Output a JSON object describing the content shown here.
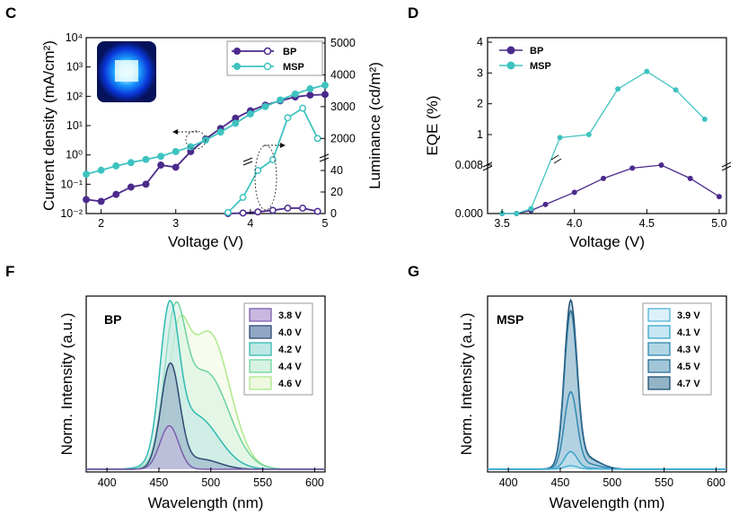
{
  "colors": {
    "bp": "#4b2a8c",
    "msp": "#3ec3c0"
  },
  "panels": {
    "C": {
      "letter": "C"
    },
    "D": {
      "letter": "D"
    },
    "F": {
      "letter": "F"
    },
    "G": {
      "letter": "G"
    }
  },
  "chart_data": [
    {
      "id": "C",
      "type": "line",
      "xlabel": "Voltage (V)",
      "ylabel_left": "Current density (mA/cm²)",
      "ylabel_right": "Luminance (cd/m²)",
      "xlim": [
        1.8,
        5.0
      ],
      "xticks": [
        "2",
        "3",
        "4",
        "5"
      ],
      "ylim_left_log": [
        0.01,
        10000
      ],
      "yticks_left": [
        "10⁻²",
        "10⁻¹",
        "10⁰",
        "10¹",
        "10²",
        "10³",
        "10⁴"
      ],
      "yticks_right_upper": [
        "2000",
        "3000",
        "4000",
        "5000"
      ],
      "yticks_right_lower": [
        "0",
        "20",
        "40"
      ],
      "legend": [
        "BP",
        "MSP"
      ],
      "legend_position": "top-right",
      "series": [
        {
          "name": "BP",
          "kind": "current-density",
          "filled": true,
          "x": [
            1.8,
            2.0,
            2.2,
            2.4,
            2.6,
            2.8,
            3.0,
            3.2,
            3.4,
            3.6,
            3.8,
            4.0,
            4.2,
            4.4,
            4.6,
            4.8,
            5.0
          ],
          "y": [
            0.03,
            0.026,
            0.045,
            0.08,
            0.1,
            0.45,
            0.38,
            1.3,
            3.5,
            8,
            18,
            32,
            50,
            70,
            95,
            110,
            115
          ]
        },
        {
          "name": "MSP",
          "kind": "current-density",
          "filled": true,
          "x": [
            1.8,
            2.0,
            2.2,
            2.4,
            2.6,
            2.8,
            3.0,
            3.2,
            3.4,
            3.6,
            3.8,
            4.0,
            4.2,
            4.4,
            4.6,
            4.8,
            5.0
          ],
          "y": [
            0.22,
            0.3,
            0.42,
            0.55,
            0.7,
            0.9,
            1.3,
            1.9,
            3.2,
            6,
            12,
            25,
            45,
            75,
            120,
            180,
            240
          ]
        },
        {
          "name": "BP",
          "kind": "luminance",
          "filled": false,
          "x": [
            3.7,
            3.9,
            4.1,
            4.3,
            4.5,
            4.7,
            4.9
          ],
          "y": [
            0,
            0.5,
            1.5,
            3,
            5,
            5,
            2
          ]
        },
        {
          "name": "MSP",
          "kind": "luminance",
          "filled": false,
          "x": [
            3.7,
            3.9,
            4.1,
            4.3,
            4.5,
            4.7,
            4.9
          ],
          "y": [
            1,
            15,
            40,
            50,
            2650,
            2950,
            2000
          ]
        }
      ]
    },
    {
      "id": "D",
      "type": "line",
      "xlabel": "Voltage (V)",
      "ylabel": "EQE (%)",
      "xlim": [
        3.4,
        5.05
      ],
      "xticks": [
        "3.5",
        "4.0",
        "4.5",
        "5.0"
      ],
      "yticks_upper": [
        "1",
        "2",
        "3",
        "4"
      ],
      "yticks_lower": [
        "0.000",
        "0.008"
      ],
      "legend": [
        "BP",
        "MSP"
      ],
      "legend_position": "top-left",
      "series": [
        {
          "name": "BP",
          "x": [
            3.5,
            3.6,
            3.7,
            3.8,
            4.0,
            4.2,
            4.4,
            4.6,
            4.8,
            5.0
          ],
          "y": [
            0,
            0,
            0.0005,
            0.0015,
            0.0035,
            0.0058,
            0.0075,
            0.008,
            0.0058,
            0.0028
          ]
        },
        {
          "name": "MSP",
          "x": [
            3.5,
            3.6,
            3.7,
            3.9,
            4.1,
            4.3,
            4.5,
            4.7,
            4.9
          ],
          "y": [
            0,
            0,
            0.0008,
            0.9,
            1.0,
            2.48,
            3.05,
            2.45,
            1.5
          ]
        }
      ]
    },
    {
      "id": "F",
      "type": "area",
      "xlabel": "Wavelength  (nm)",
      "ylabel": "Norm. Intensity (a.u.)",
      "xlim": [
        380,
        610
      ],
      "xticks": [
        "400",
        "450",
        "500",
        "550",
        "600"
      ],
      "inset_label": "BP",
      "legend_position": "top-right",
      "series": [
        {
          "name": "3.8 V",
          "color": "#7d5fae",
          "fill": "#c8b8e0",
          "peaks": [
            [
              460,
              0.26,
              9
            ]
          ],
          "tail": 0
        },
        {
          "name": "4.0 V",
          "color": "#2f4a74",
          "fill": "#8fa7c4",
          "peaks": [
            [
              461,
              0.62,
              9
            ],
            [
              490,
              0.06,
              18
            ]
          ]
        },
        {
          "name": "4.2 V",
          "color": "#2fbab0",
          "fill": "#bfe8e4",
          "peaks": [
            [
              460,
              0.84,
              9
            ],
            [
              485,
              0.32,
              22
            ]
          ]
        },
        {
          "name": "4.4 V",
          "color": "#6cd39c",
          "fill": "#d6f2e2",
          "peaks": [
            [
              465,
              0.76,
              10
            ],
            [
              495,
              0.58,
              22
            ]
          ]
        },
        {
          "name": "4.6 V",
          "color": "#aee88a",
          "fill": "#eef9e0",
          "peaks": [
            [
              468,
              0.62,
              10
            ],
            [
              498,
              0.82,
              20
            ]
          ]
        }
      ]
    },
    {
      "id": "G",
      "type": "area",
      "xlabel": "Wavelength  (nm)",
      "ylabel": "Norm. Intensity (a.u.)",
      "xlim": [
        380,
        610
      ],
      "xticks": [
        "400",
        "450",
        "500",
        "550",
        "600"
      ],
      "inset_label": "MSP",
      "legend_position": "top-right",
      "series": [
        {
          "name": "3.9 V",
          "color": "#4fb2d9",
          "fill": "#dcf0fa",
          "peak": [
            460,
            0.02,
            6
          ]
        },
        {
          "name": "4.1 V",
          "color": "#3aa4cc",
          "fill": "#c6e6f3",
          "peak": [
            460,
            0.1,
            6
          ]
        },
        {
          "name": "4.3 V",
          "color": "#2f88b0",
          "fill": "#b2d6e6",
          "peak": [
            460,
            0.44,
            6
          ]
        },
        {
          "name": "4.5 V",
          "color": "#2a6e96",
          "fill": "#a2c6d8",
          "peak": [
            460,
            0.9,
            6
          ]
        },
        {
          "name": "4.7 V",
          "color": "#1e4e70",
          "fill": "#92b4c6",
          "peak": [
            460,
            0.96,
            6
          ]
        }
      ]
    }
  ]
}
